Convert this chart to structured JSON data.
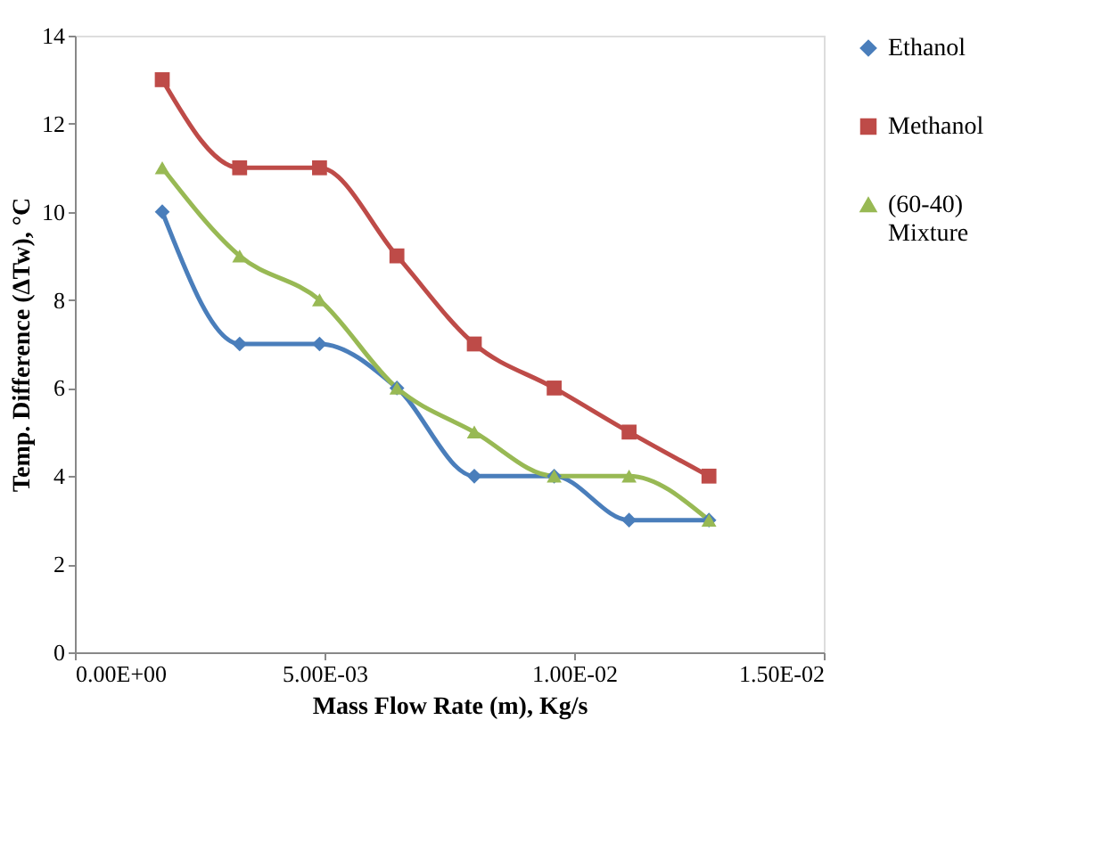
{
  "chart_data": {
    "type": "line",
    "xlabel": "Mass Flow Rate (m), Kg/s",
    "ylabel": "Temp. Difference (∆Tw), °C",
    "xlim": [
      0,
      0.015
    ],
    "xticks": [
      {
        "value": 0,
        "label": "0.00E+00"
      },
      {
        "value": 0.005,
        "label": "5.00E-03"
      },
      {
        "value": 0.01,
        "label": "1.00E-02"
      },
      {
        "value": 0.015,
        "label": "1.50E-02"
      }
    ],
    "ylim": [
      0,
      14
    ],
    "yticks": [
      0,
      2,
      4,
      6,
      8,
      10,
      12,
      14
    ],
    "grid": false,
    "legend": "right",
    "x": [
      0.00175,
      0.0033,
      0.0049,
      0.00645,
      0.008,
      0.0096,
      0.0111,
      0.0127
    ],
    "series": [
      {
        "name": "Ethanol",
        "color": "#4a7ebb",
        "marker": "diamond",
        "values": [
          10,
          7,
          7,
          6,
          4,
          4,
          3,
          3
        ]
      },
      {
        "name": "Methanol",
        "color": "#be4b48",
        "marker": "square",
        "values": [
          13,
          11,
          11,
          9,
          7,
          6,
          5,
          4
        ]
      },
      {
        "name": "(60-40) Mixture",
        "color": "#98b954",
        "marker": "triangle",
        "values": [
          11,
          9,
          8,
          6,
          5,
          4,
          4,
          3
        ]
      }
    ]
  }
}
